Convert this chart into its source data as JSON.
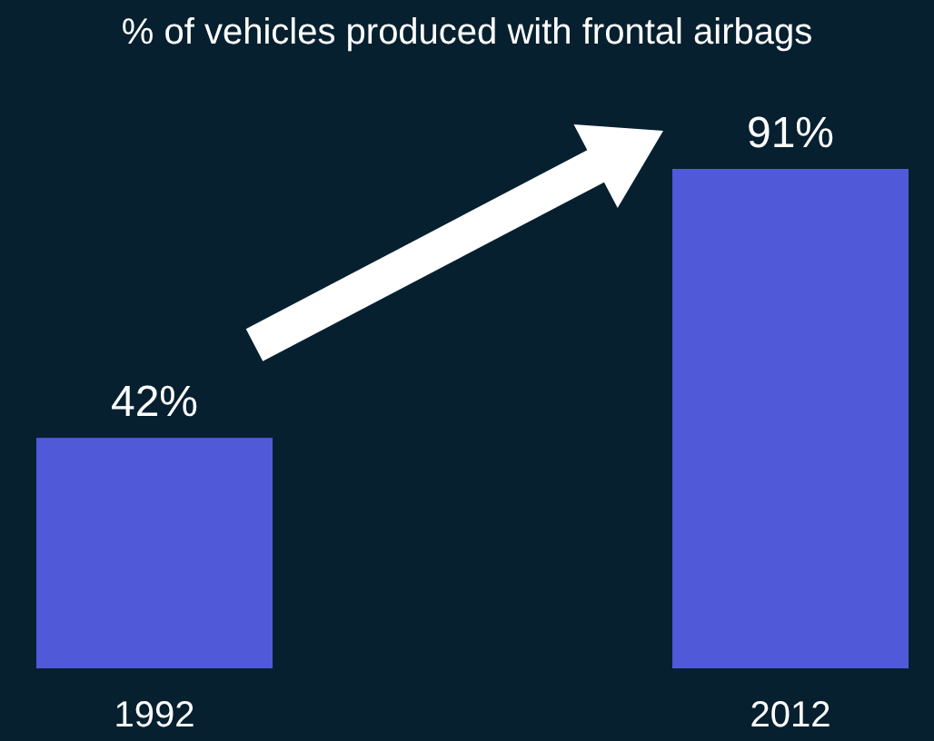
{
  "chart_data": {
    "type": "bar",
    "title": "% of vehicles produced with frontal airbags",
    "categories": [
      "1992",
      "2012"
    ],
    "values": [
      42,
      91
    ],
    "value_labels": [
      "42%",
      "91%"
    ],
    "color": "#505ad8"
  }
}
